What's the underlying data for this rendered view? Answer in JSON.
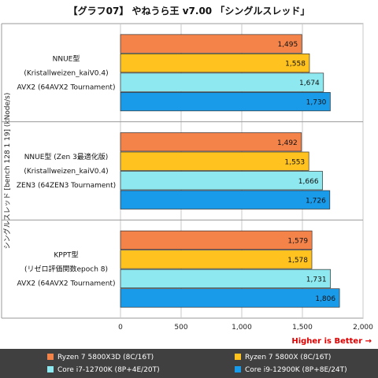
{
  "chart_data": {
    "type": "bar",
    "orientation": "horizontal",
    "title": "【グラフ07】 やねうら王 v7.00 「シングルスレッド」",
    "ylabel": "シングルスレッド [bench 128 1 19] (kNode/s)",
    "xlim": [
      0,
      2000
    ],
    "xticks": [
      0,
      500,
      1000,
      1500,
      2000
    ],
    "xtick_labels": [
      "0",
      "500",
      "1,000",
      "1,500",
      "2,000"
    ],
    "grid": true,
    "annotation": "Higher is Better →",
    "annotation_color": "#e00000",
    "legend_position": "bottom",
    "groups": [
      {
        "label_lines": [
          "NNUE型",
          "(Kristallweizen_kaiV0.4)",
          "AVX2 (64AVX2 Tournament)"
        ]
      },
      {
        "label_lines": [
          "NNUE型 (Zen 3最適化版)",
          "(Kristallweizen_kaiV0.4)",
          "ZEN3 (64ZEN3 Tournament)"
        ]
      },
      {
        "label_lines": [
          "KPPT型",
          "(リゼロ評価関数epoch 8)",
          "AVX2 (64AVX2 Tournament)"
        ]
      }
    ],
    "series": [
      {
        "name": "Ryzen 7 5800X3D (8C/16T)",
        "color": "#f4834a",
        "values": [
          1495,
          1492,
          1579
        ],
        "value_labels": [
          "1,495",
          "1,492",
          "1,579"
        ]
      },
      {
        "name": "Ryzen 7 5800X (8C/16T)",
        "color": "#ffc21e",
        "values": [
          1558,
          1553,
          1578
        ],
        "value_labels": [
          "1,558",
          "1,553",
          "1,578"
        ]
      },
      {
        "name": "Core i7-12700K (8P+4E/20T)",
        "color": "#8de9ef",
        "values": [
          1674,
          1666,
          1731
        ],
        "value_labels": [
          "1,674",
          "1,666",
          "1,731"
        ]
      },
      {
        "name": "Core i9-12900K (8P+8E/24T)",
        "color": "#1a9bea",
        "values": [
          1730,
          1726,
          1806
        ],
        "value_labels": [
          "1,730",
          "1,726",
          "1,806"
        ]
      }
    ]
  }
}
